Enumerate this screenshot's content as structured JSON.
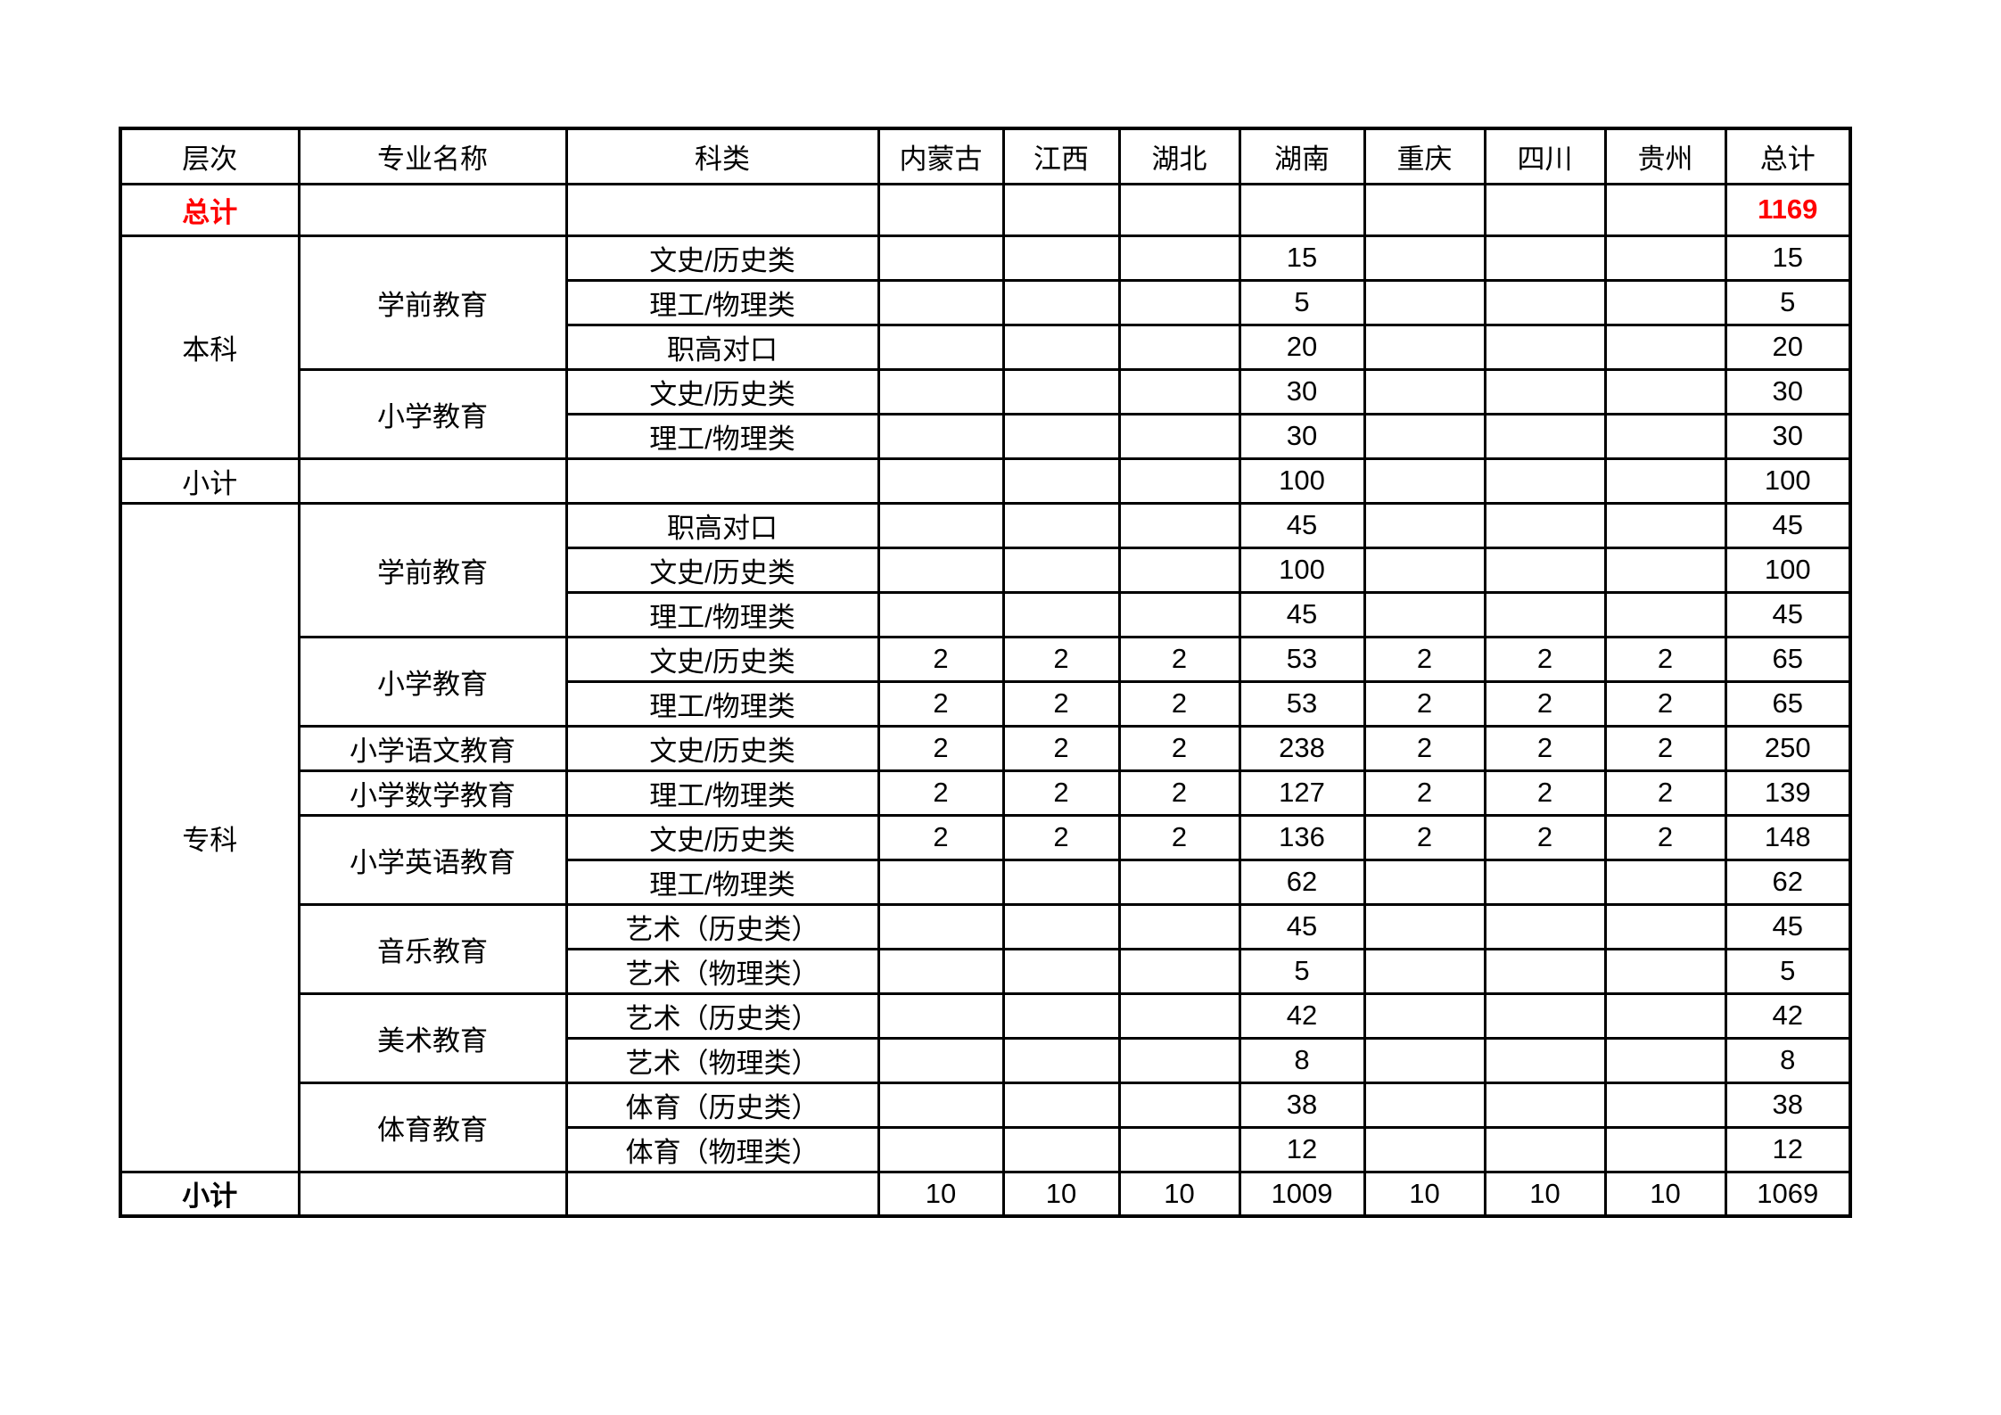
{
  "colors": {
    "emphasis_red": "#ff0000",
    "text": "#000000",
    "border": "#000000"
  },
  "table": {
    "columns": [
      "层次",
      "专业名称",
      "科类",
      "内蒙古",
      "江西",
      "湖北",
      "湖南",
      "重庆",
      "四川",
      "贵州",
      "总计"
    ],
    "rows": [
      {
        "cells": [
          {
            "t": "总计",
            "red": true,
            "b": true
          },
          {
            "t": ""
          },
          {
            "t": ""
          },
          {
            "t": ""
          },
          {
            "t": ""
          },
          {
            "t": ""
          },
          {
            "t": ""
          },
          {
            "t": ""
          },
          {
            "t": ""
          },
          {
            "t": ""
          },
          {
            "t": "1169",
            "red": true,
            "b": true
          }
        ]
      },
      {
        "cells": [
          {
            "t": "本科",
            "rs": 5
          },
          {
            "t": "学前教育",
            "rs": 3
          },
          {
            "t": "文史/历史类"
          },
          {
            "t": ""
          },
          {
            "t": ""
          },
          {
            "t": ""
          },
          {
            "t": "15"
          },
          {
            "t": ""
          },
          {
            "t": ""
          },
          {
            "t": ""
          },
          {
            "t": "15"
          }
        ]
      },
      {
        "cells": [
          {
            "t": "理工/物理类"
          },
          {
            "t": ""
          },
          {
            "t": ""
          },
          {
            "t": ""
          },
          {
            "t": "5"
          },
          {
            "t": ""
          },
          {
            "t": ""
          },
          {
            "t": ""
          },
          {
            "t": "5"
          }
        ]
      },
      {
        "cells": [
          {
            "t": "职高对口"
          },
          {
            "t": ""
          },
          {
            "t": ""
          },
          {
            "t": ""
          },
          {
            "t": "20"
          },
          {
            "t": ""
          },
          {
            "t": ""
          },
          {
            "t": ""
          },
          {
            "t": "20"
          }
        ]
      },
      {
        "cells": [
          {
            "t": "小学教育",
            "rs": 2
          },
          {
            "t": "文史/历史类"
          },
          {
            "t": ""
          },
          {
            "t": ""
          },
          {
            "t": ""
          },
          {
            "t": "30"
          },
          {
            "t": ""
          },
          {
            "t": ""
          },
          {
            "t": ""
          },
          {
            "t": "30"
          }
        ]
      },
      {
        "cells": [
          {
            "t": "理工/物理类"
          },
          {
            "t": ""
          },
          {
            "t": ""
          },
          {
            "t": ""
          },
          {
            "t": "30"
          },
          {
            "t": ""
          },
          {
            "t": ""
          },
          {
            "t": ""
          },
          {
            "t": "30"
          }
        ]
      },
      {
        "cells": [
          {
            "t": "小计"
          },
          {
            "t": ""
          },
          {
            "t": ""
          },
          {
            "t": ""
          },
          {
            "t": ""
          },
          {
            "t": ""
          },
          {
            "t": "100"
          },
          {
            "t": ""
          },
          {
            "t": ""
          },
          {
            "t": ""
          },
          {
            "t": "100"
          }
        ]
      },
      {
        "cells": [
          {
            "t": "专科",
            "rs": 15
          },
          {
            "t": "学前教育",
            "rs": 3
          },
          {
            "t": "职高对口"
          },
          {
            "t": ""
          },
          {
            "t": ""
          },
          {
            "t": ""
          },
          {
            "t": "45"
          },
          {
            "t": ""
          },
          {
            "t": ""
          },
          {
            "t": ""
          },
          {
            "t": "45"
          }
        ]
      },
      {
        "cells": [
          {
            "t": "文史/历史类"
          },
          {
            "t": ""
          },
          {
            "t": ""
          },
          {
            "t": ""
          },
          {
            "t": "100"
          },
          {
            "t": ""
          },
          {
            "t": ""
          },
          {
            "t": ""
          },
          {
            "t": "100"
          }
        ]
      },
      {
        "cells": [
          {
            "t": "理工/物理类"
          },
          {
            "t": ""
          },
          {
            "t": ""
          },
          {
            "t": ""
          },
          {
            "t": "45"
          },
          {
            "t": ""
          },
          {
            "t": ""
          },
          {
            "t": ""
          },
          {
            "t": "45"
          }
        ]
      },
      {
        "cells": [
          {
            "t": "小学教育",
            "rs": 2
          },
          {
            "t": "文史/历史类"
          },
          {
            "t": "2"
          },
          {
            "t": "2"
          },
          {
            "t": "2"
          },
          {
            "t": "53"
          },
          {
            "t": "2"
          },
          {
            "t": "2"
          },
          {
            "t": "2"
          },
          {
            "t": "65"
          }
        ]
      },
      {
        "cells": [
          {
            "t": "理工/物理类"
          },
          {
            "t": "2"
          },
          {
            "t": "2"
          },
          {
            "t": "2"
          },
          {
            "t": "53"
          },
          {
            "t": "2"
          },
          {
            "t": "2"
          },
          {
            "t": "2"
          },
          {
            "t": "65"
          }
        ]
      },
      {
        "cells": [
          {
            "t": "小学语文教育"
          },
          {
            "t": "文史/历史类"
          },
          {
            "t": "2"
          },
          {
            "t": "2"
          },
          {
            "t": "2"
          },
          {
            "t": "238"
          },
          {
            "t": "2"
          },
          {
            "t": "2"
          },
          {
            "t": "2"
          },
          {
            "t": "250"
          }
        ]
      },
      {
        "cells": [
          {
            "t": "小学数学教育"
          },
          {
            "t": "理工/物理类"
          },
          {
            "t": "2"
          },
          {
            "t": "2"
          },
          {
            "t": "2"
          },
          {
            "t": "127"
          },
          {
            "t": "2"
          },
          {
            "t": "2"
          },
          {
            "t": "2"
          },
          {
            "t": "139"
          }
        ]
      },
      {
        "cells": [
          {
            "t": "小学英语教育",
            "rs": 2
          },
          {
            "t": "文史/历史类"
          },
          {
            "t": "2"
          },
          {
            "t": "2"
          },
          {
            "t": "2"
          },
          {
            "t": "136"
          },
          {
            "t": "2"
          },
          {
            "t": "2"
          },
          {
            "t": "2"
          },
          {
            "t": "148"
          }
        ]
      },
      {
        "cells": [
          {
            "t": "理工/物理类"
          },
          {
            "t": ""
          },
          {
            "t": ""
          },
          {
            "t": ""
          },
          {
            "t": "62"
          },
          {
            "t": ""
          },
          {
            "t": ""
          },
          {
            "t": ""
          },
          {
            "t": "62"
          }
        ]
      },
      {
        "cells": [
          {
            "t": "音乐教育",
            "rs": 2
          },
          {
            "t": "艺术（历史类）"
          },
          {
            "t": ""
          },
          {
            "t": ""
          },
          {
            "t": ""
          },
          {
            "t": "45"
          },
          {
            "t": ""
          },
          {
            "t": ""
          },
          {
            "t": ""
          },
          {
            "t": "45"
          }
        ]
      },
      {
        "cells": [
          {
            "t": "艺术（物理类）"
          },
          {
            "t": ""
          },
          {
            "t": ""
          },
          {
            "t": ""
          },
          {
            "t": "5"
          },
          {
            "t": ""
          },
          {
            "t": ""
          },
          {
            "t": ""
          },
          {
            "t": "5"
          }
        ]
      },
      {
        "cells": [
          {
            "t": "美术教育",
            "rs": 2
          },
          {
            "t": "艺术（历史类）"
          },
          {
            "t": ""
          },
          {
            "t": ""
          },
          {
            "t": ""
          },
          {
            "t": "42"
          },
          {
            "t": ""
          },
          {
            "t": ""
          },
          {
            "t": ""
          },
          {
            "t": "42"
          }
        ]
      },
      {
        "cells": [
          {
            "t": "艺术（物理类）"
          },
          {
            "t": ""
          },
          {
            "t": ""
          },
          {
            "t": ""
          },
          {
            "t": "8"
          },
          {
            "t": ""
          },
          {
            "t": ""
          },
          {
            "t": ""
          },
          {
            "t": "8"
          }
        ]
      },
      {
        "cells": [
          {
            "t": "体育教育",
            "rs": 2
          },
          {
            "t": "体育（历史类）"
          },
          {
            "t": ""
          },
          {
            "t": ""
          },
          {
            "t": ""
          },
          {
            "t": "38"
          },
          {
            "t": ""
          },
          {
            "t": ""
          },
          {
            "t": ""
          },
          {
            "t": "38"
          }
        ]
      },
      {
        "cells": [
          {
            "t": "体育（物理类）"
          },
          {
            "t": ""
          },
          {
            "t": ""
          },
          {
            "t": ""
          },
          {
            "t": "12"
          },
          {
            "t": ""
          },
          {
            "t": ""
          },
          {
            "t": ""
          },
          {
            "t": "12"
          }
        ]
      },
      {
        "cells": [
          {
            "t": "小计",
            "b": true
          },
          {
            "t": ""
          },
          {
            "t": ""
          },
          {
            "t": "10"
          },
          {
            "t": "10"
          },
          {
            "t": "10"
          },
          {
            "t": "1009"
          },
          {
            "t": "10"
          },
          {
            "t": "10"
          },
          {
            "t": "10"
          },
          {
            "t": "1069"
          }
        ]
      }
    ]
  }
}
